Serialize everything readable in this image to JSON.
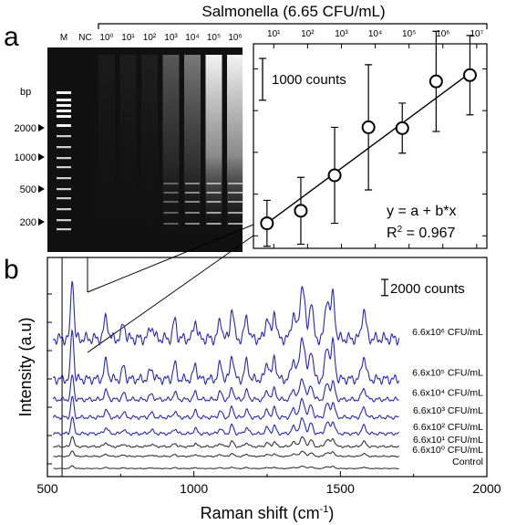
{
  "figure": {
    "title": "Salmonella (6.65 CFU/mL)",
    "panel_a_label": "a",
    "panel_b_label": "b"
  },
  "gel": {
    "lane_labels": [
      "M",
      "NC",
      "10⁰",
      "10¹",
      "10²",
      "10³",
      "10⁴",
      "10⁵",
      "10⁶"
    ],
    "bp_label": "bp",
    "marker_labels": [
      "2000",
      "1000",
      "500",
      "200"
    ]
  },
  "chart_data": [
    {
      "type": "scatter",
      "title": "",
      "xlabel": "",
      "ylabel": "",
      "x_scale": "log",
      "x_ticks": [
        "10¹",
        "10²",
        "10³",
        "10⁴",
        "10⁵",
        "10⁶",
        "10⁷"
      ],
      "x_tick_values": [
        1,
        2,
        3,
        4,
        5,
        6,
        7
      ],
      "scale_bar_label": "1000 counts",
      "scale_bar_counts": 1000,
      "points": [
        {
          "log10_cfu": 0.8,
          "y": 1300,
          "err": 550
        },
        {
          "log10_cfu": 1.8,
          "y": 1600,
          "err": 800
        },
        {
          "log10_cfu": 2.8,
          "y": 2450,
          "err": 1150
        },
        {
          "log10_cfu": 3.8,
          "y": 3600,
          "err": 1500
        },
        {
          "log10_cfu": 4.8,
          "y": 3580,
          "err": 600
        },
        {
          "log10_cfu": 5.8,
          "y": 4700,
          "err": 1200
        },
        {
          "log10_cfu": 6.8,
          "y": 4850,
          "err": 950
        }
      ],
      "fit_line": {
        "x": [
          0.8,
          6.8
        ],
        "y": [
          1300,
          4900
        ]
      },
      "equation": "y = a + b*x",
      "r2_label": "R",
      "r2_sup": "2",
      "r2_value": " = 0.967"
    },
    {
      "type": "line",
      "title": "",
      "xlabel": "Raman shift (cm",
      "xlabel_sup": "-1",
      "xlabel_end": ")",
      "ylabel": "Intensity (a.u)",
      "xlim": [
        500,
        2000
      ],
      "x_ticks": [
        500,
        1000,
        1500,
        2000
      ],
      "scale_bar_label": "2000 counts",
      "scale_bar_counts": 2000,
      "peaks_cm1": [
        585,
        700,
        760,
        855,
        935,
        1005,
        1090,
        1130,
        1180,
        1250,
        1275,
        1340,
        1370,
        1400,
        1455,
        1475,
        1580
      ],
      "series": [
        {
          "name": "Control",
          "color": "#333333",
          "offset": 0,
          "amplitude": 0.12
        },
        {
          "name": "6.6x10⁰ CFU/mL",
          "color": "#333333",
          "offset": 1500,
          "amplitude": 0.25
        },
        {
          "name": "6.6x10¹ CFU/mL",
          "color": "#333333",
          "offset": 2700,
          "amplitude": 0.45
        },
        {
          "name": "6.6x10² CFU/mL",
          "color": "#2a2aa0",
          "offset": 4300,
          "amplitude": 0.7
        },
        {
          "name": "6.6x10³ CFU/mL",
          "color": "#2a2aa0",
          "offset": 6300,
          "amplitude": 0.85
        },
        {
          "name": "6.6x10⁴ CFU/mL",
          "color": "#2a2aa0",
          "offset": 8500,
          "amplitude": 1.0
        },
        {
          "name": "6.6x10⁵ CFU/mL",
          "color": "#2a2aa0",
          "offset": 11000,
          "amplitude": 2.1
        },
        {
          "name": "6.6x10⁶ CFU/mL",
          "color": "#2a2aa0",
          "offset": 16000,
          "amplitude": 2.6
        }
      ]
    }
  ]
}
